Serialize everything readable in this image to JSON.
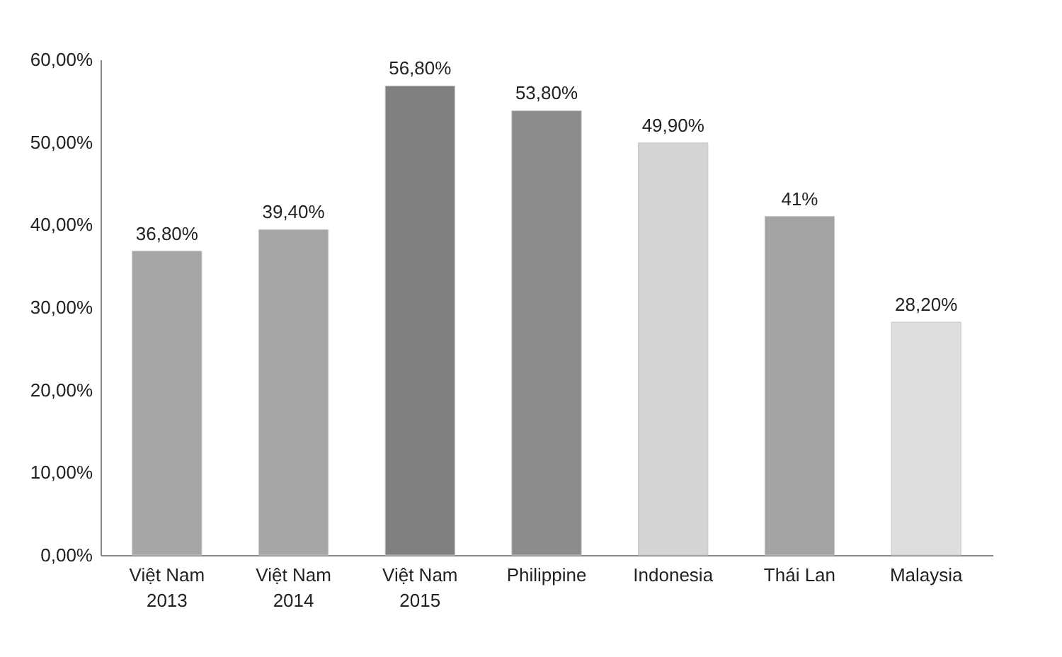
{
  "chart_data": {
    "type": "bar",
    "categories": [
      "Việt Nam 2013",
      "Việt Nam 2014",
      "Việt Nam 2015",
      "Philippine",
      "Indonesia",
      "Thái Lan",
      "Malaysia"
    ],
    "values": [
      36.8,
      39.4,
      56.8,
      53.8,
      49.9,
      41,
      28.2
    ],
    "colors": [
      "#a6a6a6",
      "#a6a6a6",
      "#808080",
      "#8c8c8c",
      "#d4d4d4",
      "#a3a3a3",
      "#dedede"
    ],
    "value_labels": [
      "36,80%",
      "39,40%",
      "56,80%",
      "53,80%",
      "49,90%",
      "41%",
      "28,20%"
    ],
    "ylim": [
      0,
      60
    ],
    "yticks": [
      {
        "value": 0,
        "label": "0,00%"
      },
      {
        "value": 10,
        "label": "10,00%"
      },
      {
        "value": 20,
        "label": "20,00%"
      },
      {
        "value": 30,
        "label": "30,00%"
      },
      {
        "value": 40,
        "label": "40,00%"
      },
      {
        "value": 50,
        "label": "50,00%"
      },
      {
        "value": 60,
        "label": "60,00%"
      }
    ],
    "grid": false
  }
}
